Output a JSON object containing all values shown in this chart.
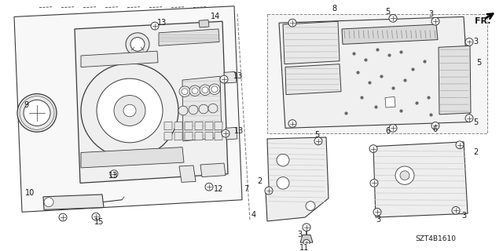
{
  "background_color": "#ffffff",
  "diagram_code": "SZT4B1610",
  "fig_width": 6.4,
  "fig_height": 3.2,
  "dpi": 100,
  "lc": "#3a3a3a",
  "lw": 0.7,
  "font_size": 7.0
}
